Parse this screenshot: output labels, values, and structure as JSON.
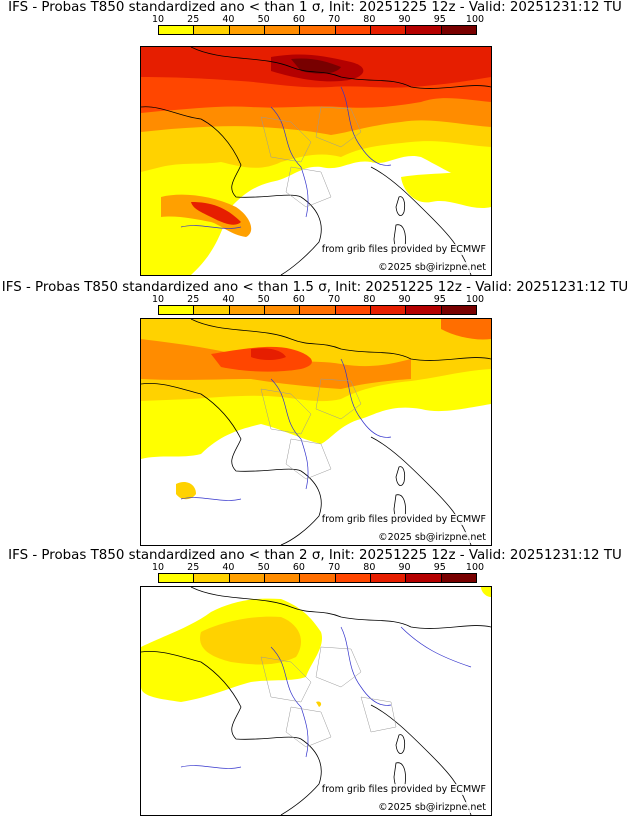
{
  "colors": {
    "c10": "#ffff00",
    "c25": "#ffd200",
    "c40": "#ffa000",
    "c50": "#ff8c00",
    "c60": "#ff6e00",
    "c70": "#ff4600",
    "c80": "#e61e00",
    "c90": "#b40000",
    "c95": "#780000",
    "border": "#000000",
    "river": "#3333cc",
    "region": "#999999"
  },
  "colorbar": {
    "ticks": [
      "10",
      "25",
      "40",
      "50",
      "60",
      "70",
      "80",
      "90",
      "95",
      "100"
    ],
    "colors": [
      "#ffff00",
      "#ffd200",
      "#ffa000",
      "#ff8c00",
      "#ff6e00",
      "#ff4600",
      "#e61e00",
      "#b40000",
      "#780000"
    ]
  },
  "panels": [
    {
      "title": "IFS - Probas T850  standardized ano < than 1 σ, Init: 20251225 12z - Valid: 20251231:12 TU",
      "source": "from grib files provided by ECMWF",
      "copyright": "©2025 sb@irizpne.net",
      "level": 3
    },
    {
      "title": "IFS - Probas T850  standardized ano < than 1.5 σ, Init: 20251225 12z - Valid: 20251231:12 TU",
      "source": "from grib files provided by ECMWF",
      "copyright": "©2025 sb@irizpne.net",
      "level": 2
    },
    {
      "title": "IFS - Probas T850  standardized ano < than 2 σ, Init: 20251225 12z - Valid: 20251231:12 TU",
      "source": "from grib files provided by ECMWF",
      "copyright": "©2025 sb@irizpne.net",
      "level": 1
    }
  ]
}
